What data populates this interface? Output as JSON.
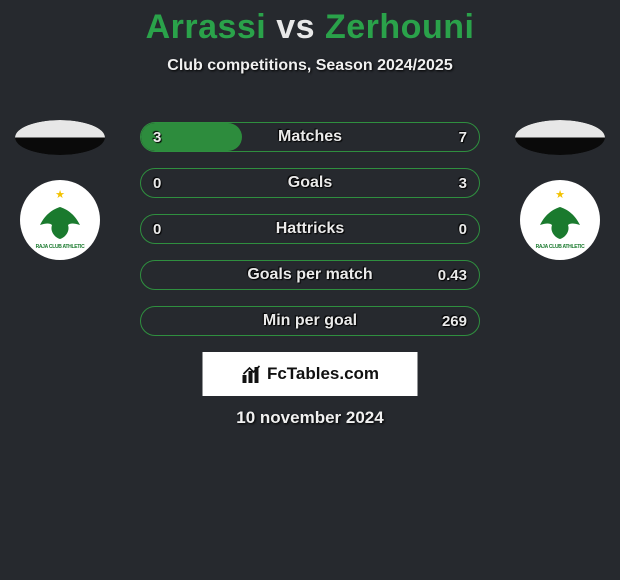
{
  "background_color": "#26292e",
  "title": {
    "player_left": "Arrassi",
    "vs": "vs",
    "player_right": "Zerhouni",
    "color_left": "#2aa24a",
    "color_vs": "#e8e8e8",
    "color_right": "#2aa24a",
    "fontsize": 34
  },
  "subtitle": "Club competitions, Season 2024/2025",
  "flag": {
    "top_color": "#e7e7e7",
    "bottom_color": "#0a0a0a"
  },
  "club_badge": {
    "eagle_color": "#1a7a2e",
    "star_color": "#f3c200",
    "ribbon_text": "RAJA CLUB ATHLETIC"
  },
  "bars": {
    "track_border": "#2f8f3f",
    "fill_color": "#2d8c3d",
    "label_color": "#eaeaea",
    "rows": [
      {
        "label": "Matches",
        "left": "3",
        "right": "7",
        "fill_pct": 30
      },
      {
        "label": "Goals",
        "left": "0",
        "right": "3",
        "fill_pct": 0
      },
      {
        "label": "Hattricks",
        "left": "0",
        "right": "0",
        "fill_pct": 0
      },
      {
        "label": "Goals per match",
        "left": "",
        "right": "0.43",
        "fill_pct": 0
      },
      {
        "label": "Min per goal",
        "left": "",
        "right": "269",
        "fill_pct": 0
      }
    ]
  },
  "brand": "FcTables.com",
  "date": "10 november 2024"
}
